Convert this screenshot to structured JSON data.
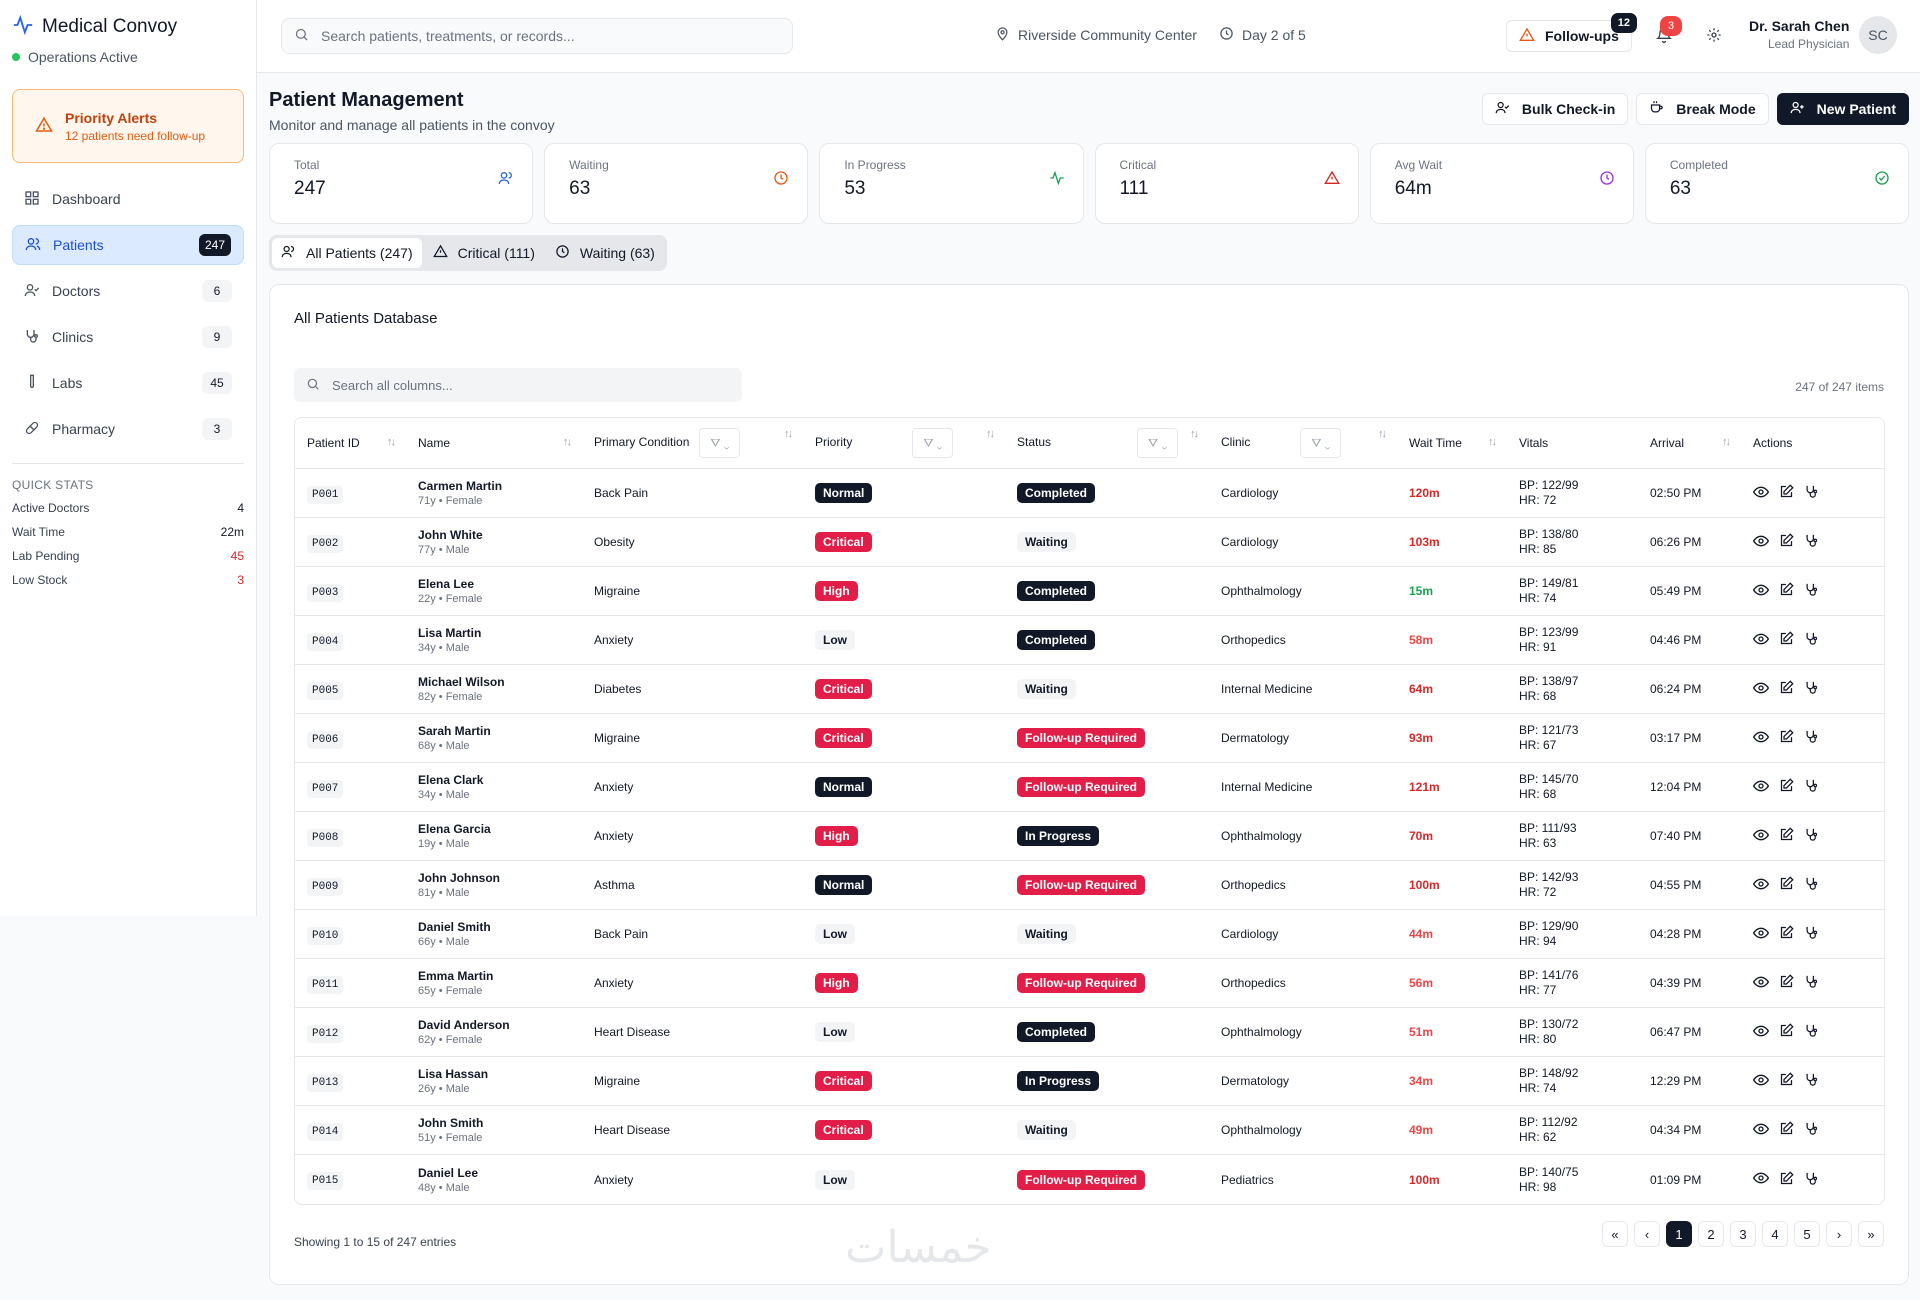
{
  "brand": {
    "title": "Medical Convoy",
    "status": "Operations Active"
  },
  "alert": {
    "title": "Priority Alerts",
    "subtitle": "12 patients need follow-up"
  },
  "nav": [
    {
      "label": "Dashboard",
      "badge": "",
      "icon": "grid-icon"
    },
    {
      "label": "Patients",
      "badge": "247",
      "icon": "users-icon"
    },
    {
      "label": "Doctors",
      "badge": "6",
      "icon": "user-check-icon"
    },
    {
      "label": "Clinics",
      "badge": "9",
      "icon": "stethoscope-icon"
    },
    {
      "label": "Labs",
      "badge": "45",
      "icon": "test-tube-icon"
    },
    {
      "label": "Pharmacy",
      "badge": "3",
      "icon": "pill-icon"
    }
  ],
  "quick_stats": {
    "title": "QUICK STATS",
    "rows": [
      {
        "label": "Active Doctors",
        "value": "4"
      },
      {
        "label": "Wait Time",
        "value": "22m"
      },
      {
        "label": "Lab Pending",
        "value": "45"
      },
      {
        "label": "Low Stock",
        "value": "3"
      }
    ]
  },
  "topbar": {
    "search_placeholder": "Search patients, treatments, or records...",
    "location": "Riverside Community Center",
    "day": "Day 2 of 5",
    "followups_label": "Follow-ups",
    "followups_count": "12",
    "notifications_count": "3",
    "user_name": "Dr. Sarah Chen",
    "user_role": "Lead Physician",
    "user_initials": "SC"
  },
  "page": {
    "title": "Patient Management",
    "subtitle": "Monitor and manage all patients in the convoy",
    "bulk_label": "Bulk Check-in",
    "break_label": "Break Mode",
    "new_label": "New Patient"
  },
  "stats": [
    {
      "label": "Total",
      "value": "247",
      "color": "#2563eb"
    },
    {
      "label": "Waiting",
      "value": "63",
      "color": "#ea580c"
    },
    {
      "label": "In Progress",
      "value": "53",
      "color": "#16a34a"
    },
    {
      "label": "Critical",
      "value": "111",
      "color": "#dc2626"
    },
    {
      "label": "Avg Wait",
      "value": "64m",
      "color": "#9333ea"
    },
    {
      "label": "Completed",
      "value": "63",
      "color": "#16a34a"
    }
  ],
  "tabs": [
    {
      "label": "All Patients (247)"
    },
    {
      "label": "Critical (111)"
    },
    {
      "label": "Waiting (63)"
    }
  ],
  "table": {
    "title": "All Patients Database",
    "search_placeholder": "Search all columns...",
    "count": "247 of 247 items",
    "columns": [
      "Patient ID",
      "Name",
      "Primary Condition",
      "Priority",
      "Status",
      "Clinic",
      "Wait Time",
      "Vitals",
      "Arrival",
      "Actions"
    ],
    "rows": [
      {
        "id": "P001",
        "name": "Carmen Martin",
        "meta": "71y • Female",
        "condition": "Back Pain",
        "priority": "Normal",
        "status": "Completed",
        "clinic": "Cardiology",
        "wait": "120m",
        "bp": "BP: 122/99",
        "hr": "HR: 72",
        "arrival": "02:50 PM"
      },
      {
        "id": "P002",
        "name": "John White",
        "meta": "77y • Male",
        "condition": "Obesity",
        "priority": "Critical",
        "status": "Waiting",
        "clinic": "Cardiology",
        "wait": "103m",
        "bp": "BP: 138/80",
        "hr": "HR: 85",
        "arrival": "06:26 PM"
      },
      {
        "id": "P003",
        "name": "Elena Lee",
        "meta": "22y • Female",
        "condition": "Migraine",
        "priority": "High",
        "status": "Completed",
        "clinic": "Ophthalmology",
        "wait": "15m",
        "bp": "BP: 149/81",
        "hr": "HR: 74",
        "arrival": "05:49 PM"
      },
      {
        "id": "P004",
        "name": "Lisa Martin",
        "meta": "34y • Male",
        "condition": "Anxiety",
        "priority": "Low",
        "status": "Completed",
        "clinic": "Orthopedics",
        "wait": "58m",
        "bp": "BP: 123/99",
        "hr": "HR: 91",
        "arrival": "04:46 PM"
      },
      {
        "id": "P005",
        "name": "Michael Wilson",
        "meta": "82y • Female",
        "condition": "Diabetes",
        "priority": "Critical",
        "status": "Waiting",
        "clinic": "Internal Medicine",
        "wait": "64m",
        "bp": "BP: 138/97",
        "hr": "HR: 68",
        "arrival": "06:24 PM"
      },
      {
        "id": "P006",
        "name": "Sarah Martin",
        "meta": "68y • Male",
        "condition": "Migraine",
        "priority": "Critical",
        "status": "Follow-up Required",
        "clinic": "Dermatology",
        "wait": "93m",
        "bp": "BP: 121/73",
        "hr": "HR: 67",
        "arrival": "03:17 PM"
      },
      {
        "id": "P007",
        "name": "Elena Clark",
        "meta": "34y • Male",
        "condition": "Anxiety",
        "priority": "Normal",
        "status": "Follow-up Required",
        "clinic": "Internal Medicine",
        "wait": "121m",
        "bp": "BP: 145/70",
        "hr": "HR: 68",
        "arrival": "12:04 PM"
      },
      {
        "id": "P008",
        "name": "Elena Garcia",
        "meta": "19y • Male",
        "condition": "Anxiety",
        "priority": "High",
        "status": "In Progress",
        "clinic": "Ophthalmology",
        "wait": "70m",
        "bp": "BP: 111/93",
        "hr": "HR: 63",
        "arrival": "07:40 PM"
      },
      {
        "id": "P009",
        "name": "John Johnson",
        "meta": "81y • Male",
        "condition": "Asthma",
        "priority": "Normal",
        "status": "Follow-up Required",
        "clinic": "Orthopedics",
        "wait": "100m",
        "bp": "BP: 142/93",
        "hr": "HR: 72",
        "arrival": "04:55 PM"
      },
      {
        "id": "P010",
        "name": "Daniel Smith",
        "meta": "66y • Male",
        "condition": "Back Pain",
        "priority": "Low",
        "status": "Waiting",
        "clinic": "Cardiology",
        "wait": "44m",
        "bp": "BP: 129/90",
        "hr": "HR: 94",
        "arrival": "04:28 PM"
      },
      {
        "id": "P011",
        "name": "Emma Martin",
        "meta": "65y • Female",
        "condition": "Anxiety",
        "priority": "High",
        "status": "Follow-up Required",
        "clinic": "Orthopedics",
        "wait": "56m",
        "bp": "BP: 141/76",
        "hr": "HR: 77",
        "arrival": "04:39 PM"
      },
      {
        "id": "P012",
        "name": "David Anderson",
        "meta": "62y • Female",
        "condition": "Heart Disease",
        "priority": "Low",
        "status": "Completed",
        "clinic": "Ophthalmology",
        "wait": "51m",
        "bp": "BP: 130/72",
        "hr": "HR: 80",
        "arrival": "06:47 PM"
      },
      {
        "id": "P013",
        "name": "Lisa Hassan",
        "meta": "26y • Male",
        "condition": "Migraine",
        "priority": "Critical",
        "status": "In Progress",
        "clinic": "Dermatology",
        "wait": "34m",
        "bp": "BP: 148/92",
        "hr": "HR: 74",
        "arrival": "12:29 PM"
      },
      {
        "id": "P014",
        "name": "John Smith",
        "meta": "51y • Female",
        "condition": "Heart Disease",
        "priority": "Critical",
        "status": "Waiting",
        "clinic": "Ophthalmology",
        "wait": "49m",
        "bp": "BP: 112/92",
        "hr": "HR: 62",
        "arrival": "04:34 PM"
      },
      {
        "id": "P015",
        "name": "Daniel Lee",
        "meta": "48y • Male",
        "condition": "Anxiety",
        "priority": "Low",
        "status": "Follow-up Required",
        "clinic": "Pediatrics",
        "wait": "100m",
        "bp": "BP: 140/75",
        "hr": "HR: 98",
        "arrival": "01:09 PM"
      }
    ],
    "footer": "Showing 1 to 15 of 247 entries",
    "pages": [
      "1",
      "2",
      "3",
      "4",
      "5"
    ]
  },
  "watermark": "خمسات"
}
